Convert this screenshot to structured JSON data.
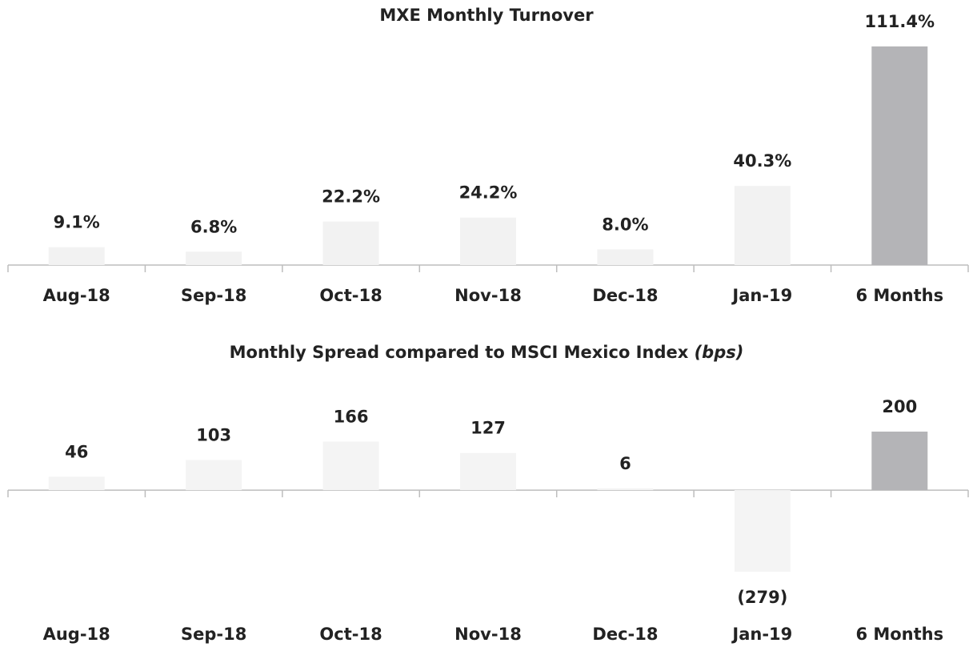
{
  "chart_data": [
    {
      "type": "bar",
      "title": "MXE Monthly Turnover",
      "categories": [
        "Aug-18",
        "Sep-18",
        "Oct-18",
        "Nov-18",
        "Dec-18",
        "Jan-19",
        "6 Months"
      ],
      "values": [
        9.1,
        6.8,
        22.2,
        24.2,
        8.0,
        40.3,
        111.4
      ],
      "value_labels": [
        "9.1%",
        "6.8%",
        "22.2%",
        "24.2%",
        "8.0%",
        "40.3%",
        "111.4%"
      ],
      "colors": [
        "#f2f2f2",
        "#f2f2f2",
        "#f2f2f2",
        "#f2f2f2",
        "#f2f2f2",
        "#f2f2f2",
        "#b4b4b7"
      ]
    },
    {
      "type": "bar",
      "title": "Monthly Spread compared to MSCI Mexico Index",
      "title_unit": "(bps)",
      "categories": [
        "Aug-18",
        "Sep-18",
        "Oct-18",
        "Nov-18",
        "Dec-18",
        "Jan-19",
        "6 Months"
      ],
      "values": [
        46,
        103,
        166,
        127,
        6,
        -279,
        200
      ],
      "value_labels": [
        "46",
        "103",
        "166",
        "127",
        "6",
        "(279)",
        "200"
      ],
      "colors": [
        "#f4f4f4",
        "#f4f4f4",
        "#f4f4f4",
        "#f4f4f4",
        "#f4f4f4",
        "#f4f4f4",
        "#b4b4b7"
      ]
    }
  ]
}
